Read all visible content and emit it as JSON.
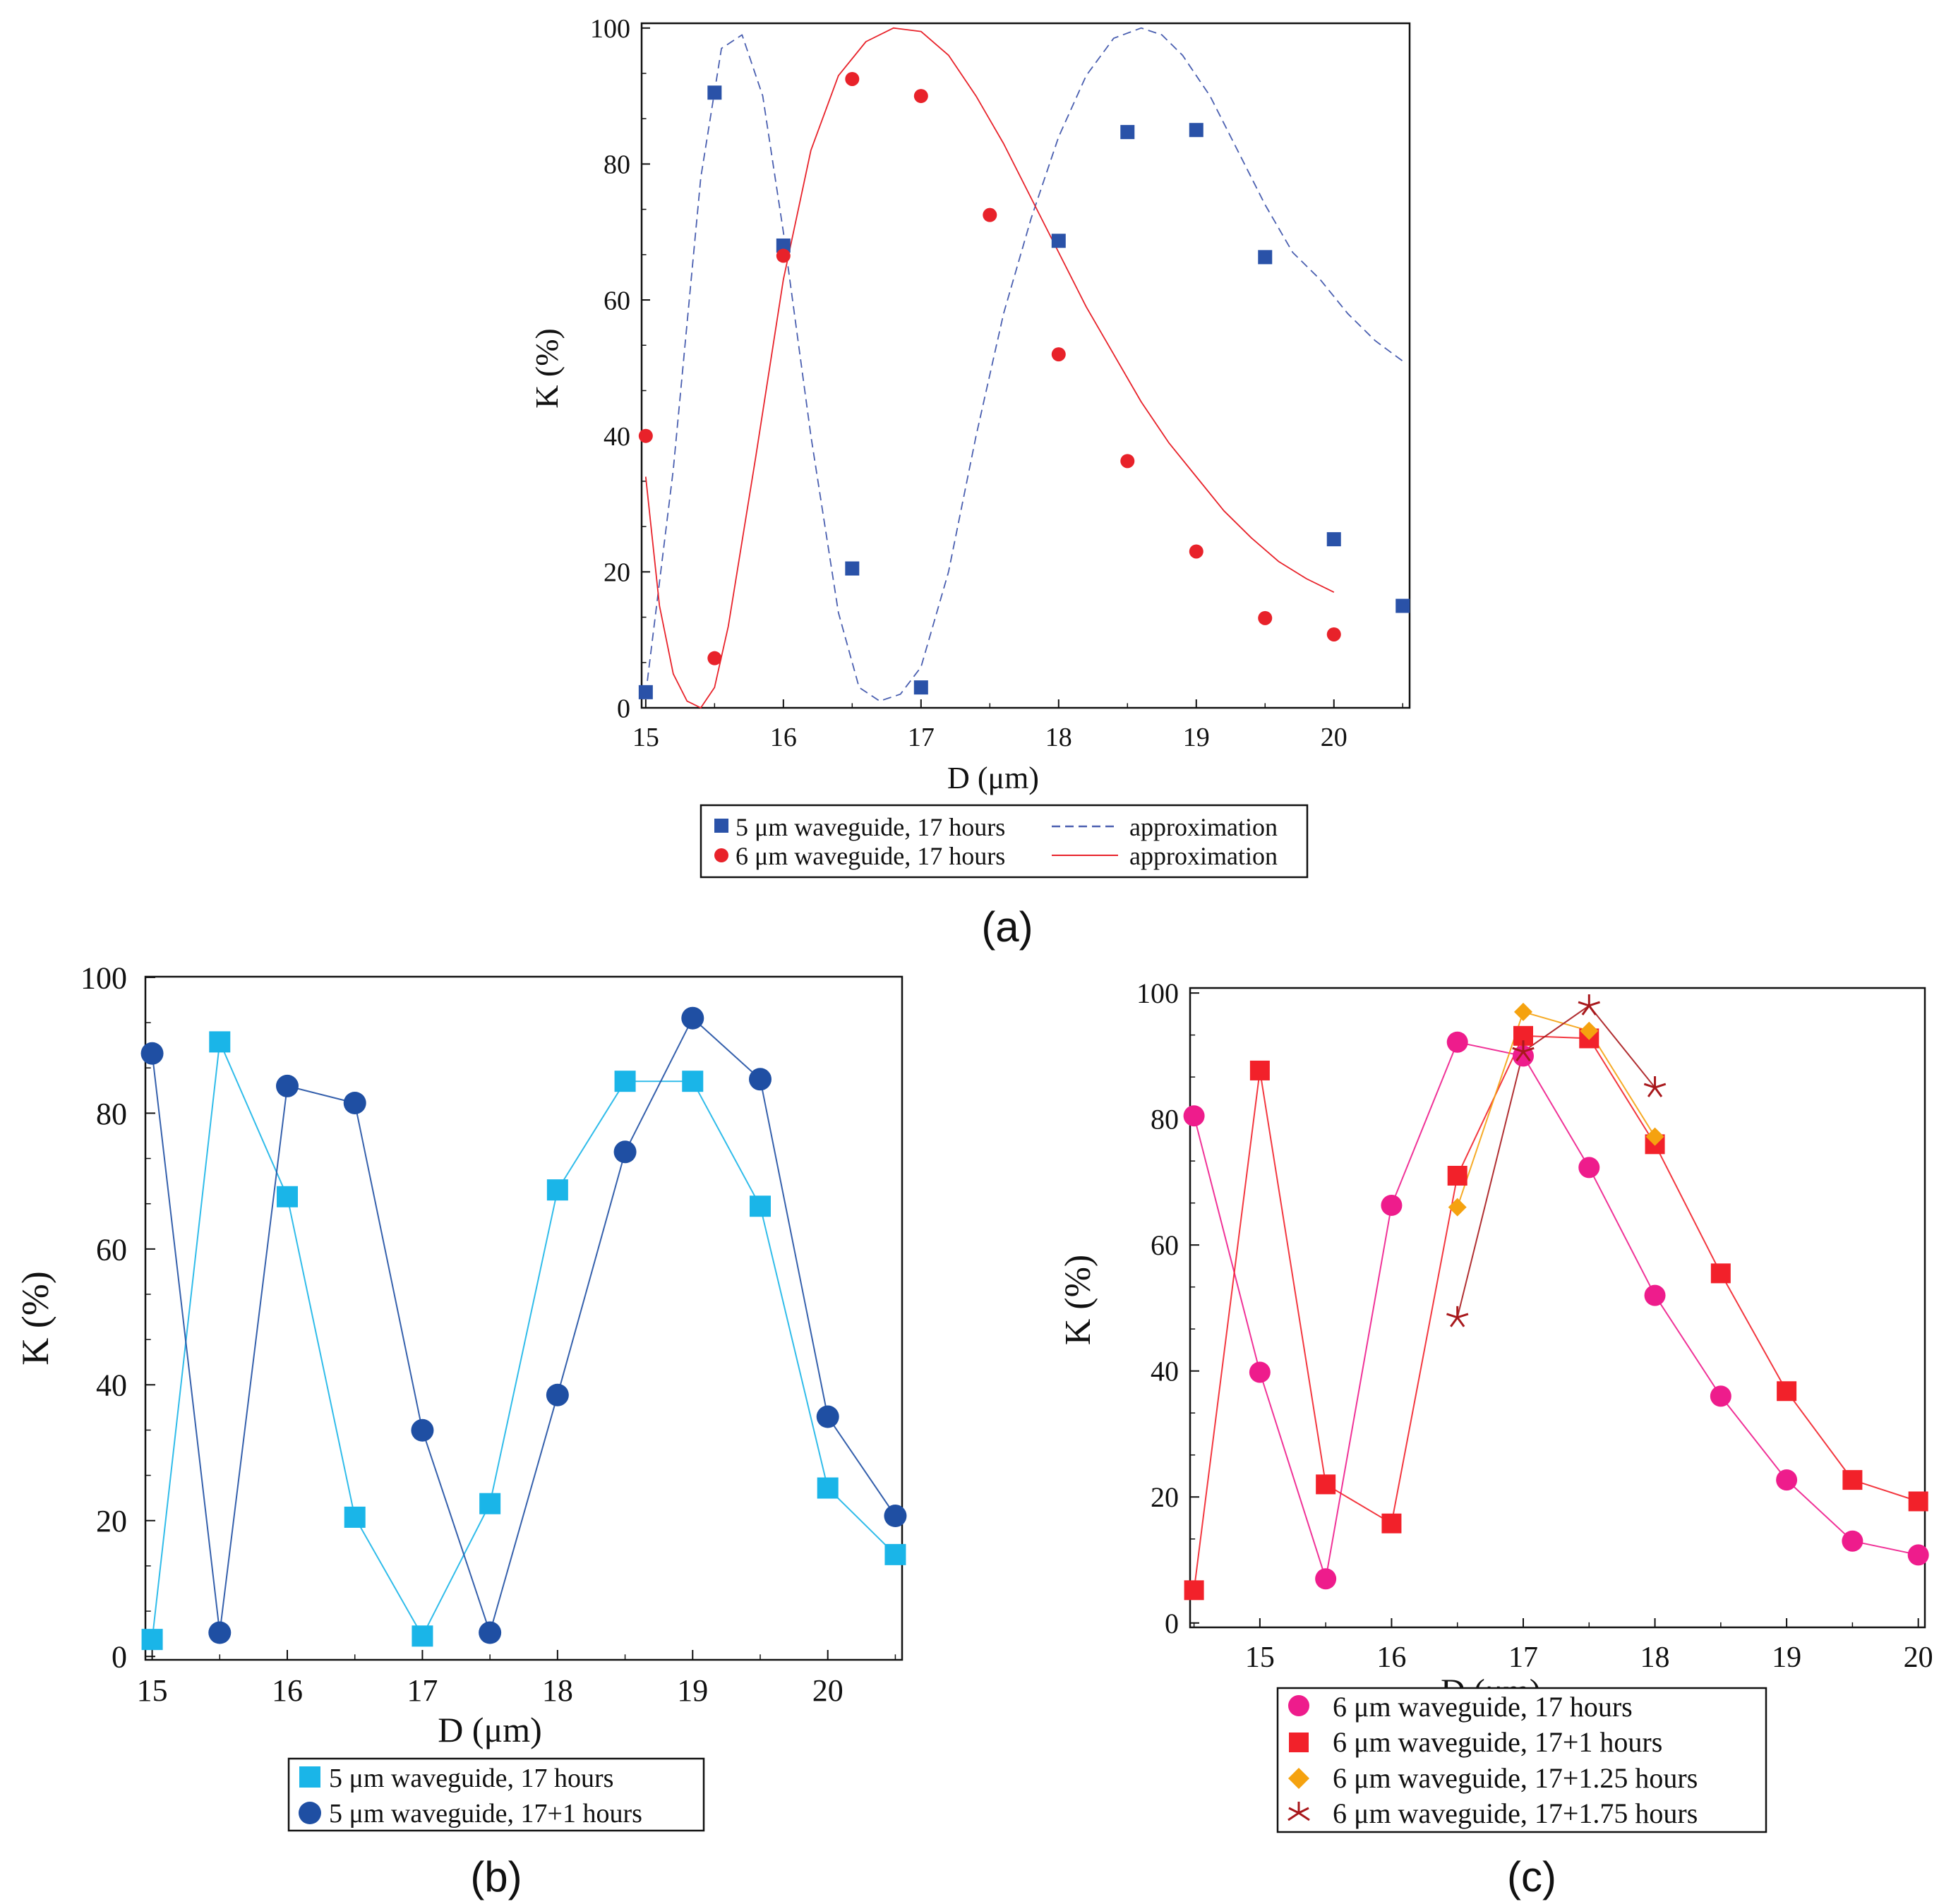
{
  "chart_data": [
    {
      "id": "a",
      "type": "scatter",
      "caption": "(a)",
      "xlabel": "D (μm)",
      "ylabel": "K (%)",
      "xlim": [
        14.97,
        20.55
      ],
      "ylim": [
        0,
        100.7
      ],
      "xticks": [
        "15",
        "16",
        "17",
        "18",
        "19",
        "20"
      ],
      "yticks": [
        "0",
        "20",
        "40",
        "60",
        "80",
        "100"
      ],
      "series": [
        {
          "name": "5 μm waveguide, 17 hours",
          "marker": "square",
          "color": "#2a52a8",
          "x": [
            15,
            15.5,
            16,
            16.5,
            17,
            18,
            18.5,
            19,
            19.5,
            20,
            20.5
          ],
          "y": [
            2.3,
            90.5,
            68.0,
            20.5,
            3.0,
            68.7,
            84.7,
            85.0,
            66.3,
            24.8,
            15.0
          ]
        },
        {
          "name": "6 μm waveguide, 17 hours",
          "marker": "circle",
          "color": "#e8222a",
          "x": [
            15,
            15.5,
            16,
            16.5,
            17,
            17.5,
            18,
            18.5,
            19,
            19.5,
            20
          ],
          "y": [
            40.0,
            7.3,
            66.5,
            92.5,
            90.0,
            72.5,
            52.0,
            36.3,
            23.0,
            13.2,
            10.8
          ]
        }
      ],
      "approximations": [
        {
          "name": "approximation",
          "color": "#4a5fb0",
          "dash": true,
          "x": [
            15.0,
            15.2,
            15.4,
            15.55,
            15.7,
            15.85,
            16.0,
            16.2,
            16.4,
            16.55,
            16.7,
            16.85,
            17.0,
            17.2,
            17.4,
            17.6,
            17.8,
            18.0,
            18.2,
            18.4,
            18.6,
            18.75,
            18.9,
            19.1,
            19.3,
            19.5,
            19.7,
            19.9,
            20.1,
            20.3,
            20.5
          ],
          "y": [
            2,
            35,
            78,
            97,
            99,
            90,
            70,
            40,
            14,
            3,
            1,
            2,
            6,
            20,
            40,
            58,
            72,
            84,
            93,
            98.5,
            100,
            99,
            96,
            90,
            82,
            74,
            67,
            63,
            58,
            54,
            51
          ]
        },
        {
          "name": "approximation",
          "color": "#e8222a",
          "dash": false,
          "x": [
            15.0,
            15.1,
            15.2,
            15.3,
            15.4,
            15.5,
            15.6,
            15.8,
            16.0,
            16.2,
            16.4,
            16.6,
            16.8,
            17.0,
            17.2,
            17.4,
            17.6,
            17.8,
            18.0,
            18.2,
            18.4,
            18.6,
            18.8,
            19.0,
            19.2,
            19.4,
            19.6,
            19.8,
            20.0
          ],
          "y": [
            34,
            15,
            5,
            1,
            0,
            3,
            12,
            37,
            63,
            82,
            93,
            98,
            100,
            99.5,
            96,
            90,
            83,
            75,
            67,
            59,
            52,
            45,
            39,
            34,
            29,
            25,
            21.5,
            19,
            17
          ]
        }
      ],
      "legend": {
        "rows": [
          {
            "label": "5 μm waveguide, 17 hours",
            "line_label": "approximation"
          },
          {
            "label": "6 μm waveguide, 17 hours",
            "line_label": "approximation"
          }
        ]
      }
    },
    {
      "id": "b",
      "type": "line",
      "caption": "(b)",
      "xlabel": "D (μm)",
      "ylabel": "K (%)",
      "xlim": [
        14.95,
        20.55
      ],
      "ylim": [
        -0.5,
        100.1
      ],
      "xticks": [
        "15",
        "16",
        "17",
        "18",
        "19",
        "20"
      ],
      "yticks": [
        "0",
        "20",
        "40",
        "60",
        "80",
        "100"
      ],
      "series": [
        {
          "name": "5 μm waveguide, 17 hours",
          "marker": "square",
          "color": "#1ab5e8",
          "x": [
            15,
            15.5,
            16,
            16.5,
            17,
            17.5,
            18,
            18.5,
            19,
            19.5,
            20,
            20.5
          ],
          "y": [
            2.5,
            90.5,
            67.7,
            20.5,
            3.0,
            22.5,
            68.7,
            84.7,
            84.7,
            66.3,
            24.8,
            15.0
          ]
        },
        {
          "name": "5 μm waveguide, 17+1 hours",
          "marker": "circle",
          "color": "#1f4fa3",
          "x": [
            15,
            15.5,
            16,
            16.5,
            17,
            17.5,
            18,
            18.5,
            19,
            19.5,
            20,
            20.5
          ],
          "y": [
            88.8,
            3.5,
            84.0,
            81.5,
            33.3,
            3.5,
            38.5,
            74.3,
            94.0,
            85.0,
            35.3,
            20.7
          ]
        }
      ]
    },
    {
      "id": "c",
      "type": "line",
      "caption": "(c)",
      "xlabel": "D (μm)",
      "ylabel": "K (%)",
      "xlim": [
        14.47,
        20.05
      ],
      "ylim": [
        -0.7,
        100.8
      ],
      "xticks": [
        "15",
        "16",
        "17",
        "18",
        "19",
        "20"
      ],
      "yticks": [
        "0",
        "20",
        "40",
        "60",
        "80",
        "100"
      ],
      "series": [
        {
          "name": "6 μm waveguide, 17 hours",
          "marker": "circle",
          "color": "#ee1c8c",
          "x": [
            14.5,
            15,
            15.5,
            16,
            16.5,
            17,
            17.5,
            18,
            18.5,
            19,
            19.5,
            20
          ],
          "y": [
            80.5,
            39.8,
            7.0,
            66.3,
            92.2,
            90.0,
            72.3,
            52.0,
            36.0,
            22.7,
            13.0,
            10.8
          ]
        },
        {
          "name": "6 μm waveguide, 17+1 hours",
          "marker": "square",
          "color": "#f2212a",
          "x": [
            14.5,
            15,
            15.5,
            16,
            16.5,
            17,
            17.5,
            18,
            18.5,
            19,
            19.5,
            20
          ],
          "y": [
            5.2,
            87.7,
            22.0,
            15.8,
            71.0,
            93.2,
            92.8,
            76.0,
            55.5,
            36.8,
            22.7,
            19.3
          ]
        },
        {
          "name": "6 μm waveguide, 17+1.25 hours",
          "marker": "diamond",
          "color": "#f5a20f",
          "x": [
            16.5,
            17,
            17.5,
            18
          ],
          "y": [
            66.0,
            97.0,
            94.0,
            77.2
          ]
        },
        {
          "name": "6 μm waveguide, 17+1.75 hours",
          "marker": "star",
          "color": "#a8181c",
          "x": [
            16.5,
            17,
            17.5,
            18
          ],
          "y": [
            48.5,
            90.7,
            98.0,
            85.0
          ]
        }
      ]
    }
  ]
}
